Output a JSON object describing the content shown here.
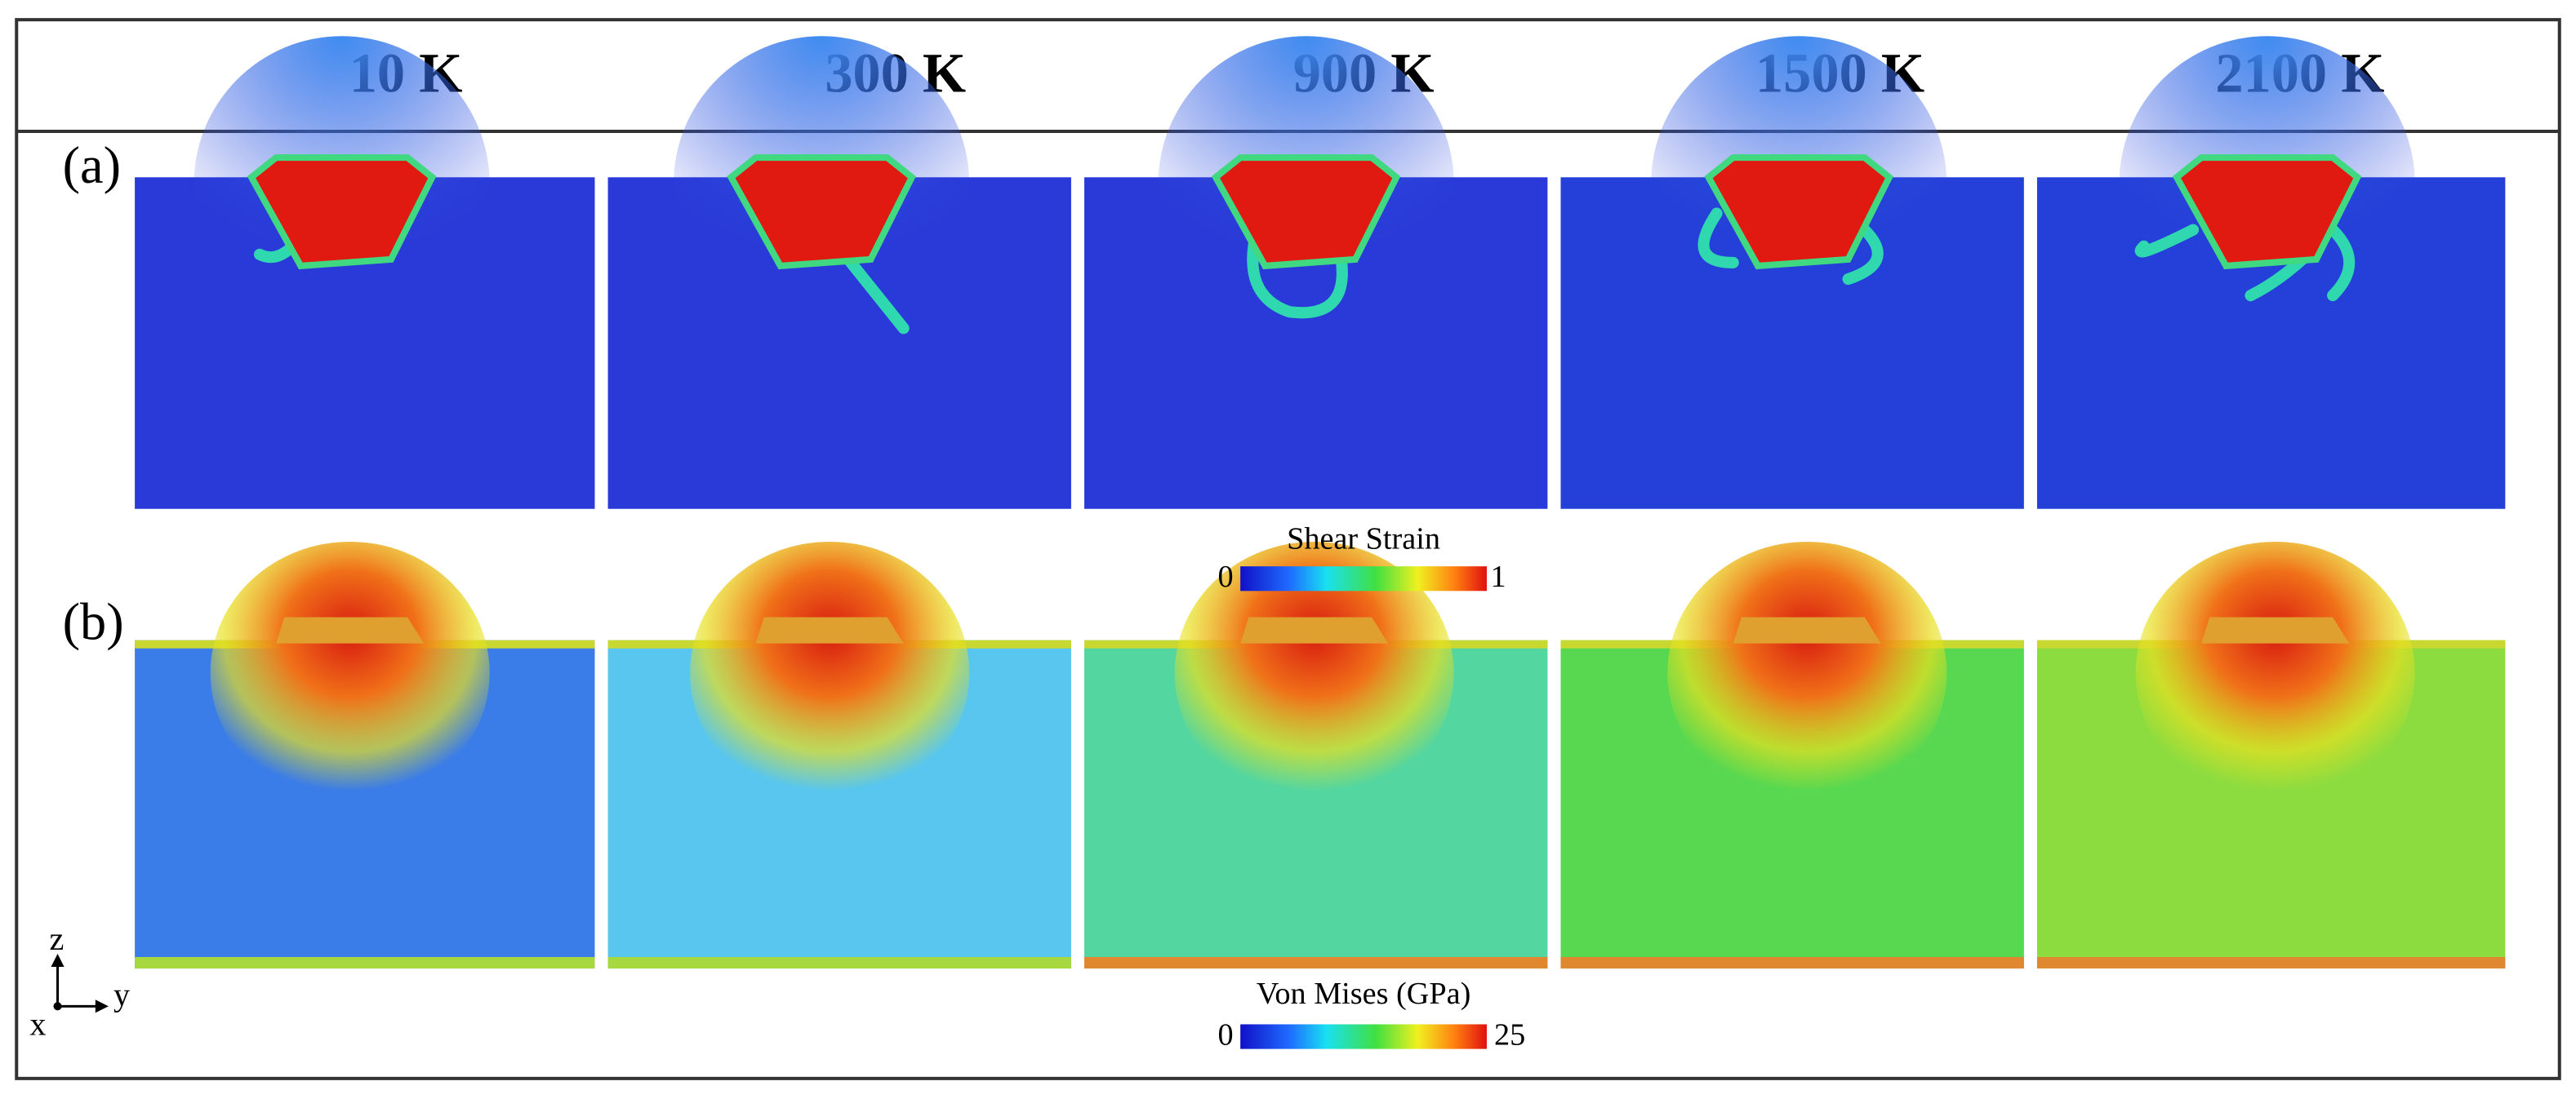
{
  "header": {
    "temperatures": [
      "10 K",
      "300 K",
      "900 K",
      "1500 K",
      "2100 K"
    ]
  },
  "panels": [
    {
      "label": "(a)",
      "colorbar": {
        "title": "Shear Strain",
        "min": 0,
        "max": 1
      }
    },
    {
      "label": "(b)",
      "colorbar": {
        "title": "Von Mises (GPa)",
        "min": 0,
        "max": 25
      }
    }
  ],
  "axes": {
    "vertical": "z",
    "horizontal": "y",
    "out_of_plane": "x"
  }
}
